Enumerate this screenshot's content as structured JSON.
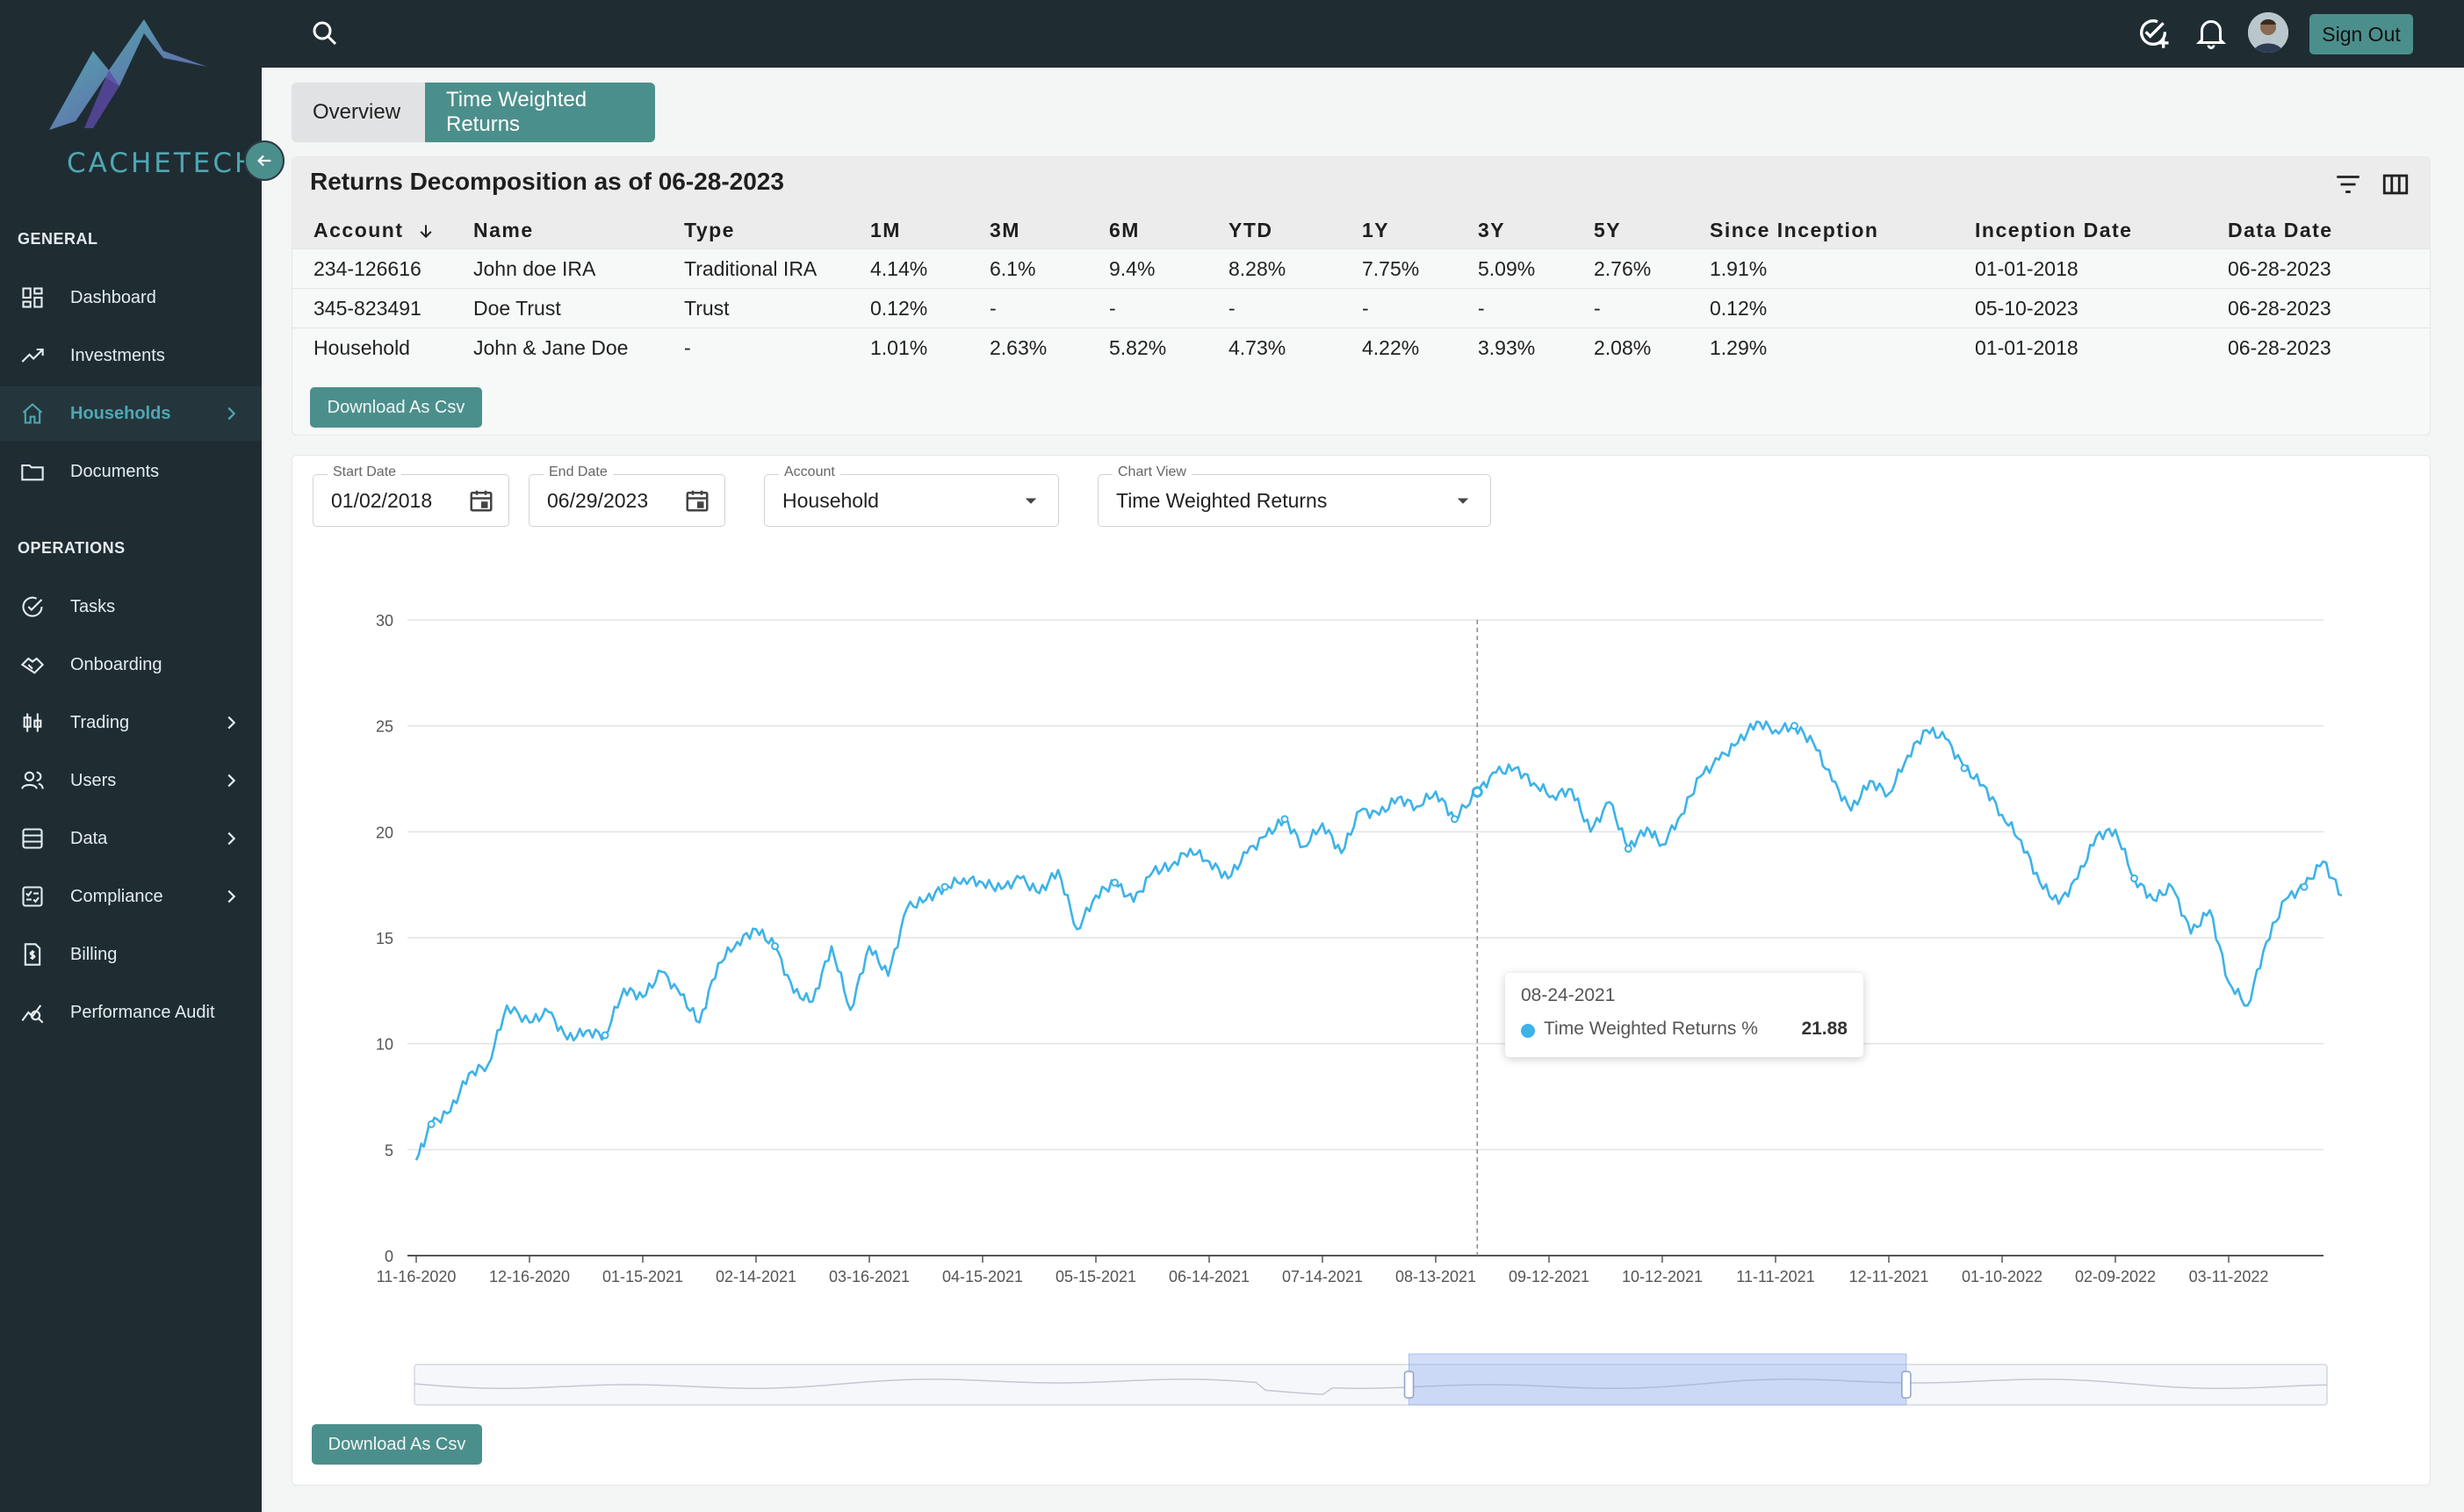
{
  "brand": {
    "name": "CACHETECH"
  },
  "sidebar": {
    "sections": [
      {
        "title": "GENERAL",
        "items": [
          {
            "label": "Dashboard",
            "icon": "dashboard-icon"
          },
          {
            "label": "Investments",
            "icon": "trending-up-icon"
          },
          {
            "label": "Households",
            "icon": "home-icon",
            "active": true,
            "has_children": true
          },
          {
            "label": "Documents",
            "icon": "folder-icon"
          }
        ]
      },
      {
        "title": "OPERATIONS",
        "items": [
          {
            "label": "Tasks",
            "icon": "check-circle-icon"
          },
          {
            "label": "Onboarding",
            "icon": "handshake-icon"
          },
          {
            "label": "Trading",
            "icon": "candlestick-icon",
            "has_children": true
          },
          {
            "label": "Users",
            "icon": "users-icon",
            "has_children": true
          },
          {
            "label": "Data",
            "icon": "database-icon",
            "has_children": true
          },
          {
            "label": "Compliance",
            "icon": "checklist-icon",
            "has_children": true
          },
          {
            "label": "Billing",
            "icon": "billing-icon"
          },
          {
            "label": "Performance Audit",
            "icon": "audit-chart-icon"
          }
        ]
      }
    ]
  },
  "topbar": {
    "sign_out_label": "Sign Out"
  },
  "tabs": [
    {
      "label": "Overview",
      "active": false
    },
    {
      "label": "Time Weighted Returns",
      "active": true
    }
  ],
  "returns": {
    "title": "Returns Decomposition as of 06-28-2023",
    "columns": [
      "Account",
      "Name",
      "Type",
      "1M",
      "3M",
      "6M",
      "YTD",
      "1Y",
      "3Y",
      "5Y",
      "Since Inception",
      "Inception Date",
      "Data Date"
    ],
    "rows": [
      [
        "234-126616",
        "John doe IRA",
        "Traditional IRA",
        "4.14%",
        "6.1%",
        "9.4%",
        "8.28%",
        "7.75%",
        "5.09%",
        "2.76%",
        "1.91%",
        "01-01-2018",
        "06-28-2023"
      ],
      [
        "345-823491",
        "Doe Trust",
        "Trust",
        "0.12%",
        "-",
        "-",
        "-",
        "-",
        "-",
        "-",
        "0.12%",
        "05-10-2023",
        "06-28-2023"
      ],
      [
        "Household",
        "John & Jane Doe",
        "-",
        "1.01%",
        "2.63%",
        "5.82%",
        "4.73%",
        "4.22%",
        "3.93%",
        "2.08%",
        "1.29%",
        "01-01-2018",
        "06-28-2023"
      ]
    ],
    "download_label": "Download As Csv"
  },
  "filters": {
    "start_date": {
      "label": "Start Date",
      "value": "01/02/2018"
    },
    "end_date": {
      "label": "End Date",
      "value": "06/29/2023"
    },
    "account": {
      "label": "Account",
      "value": "Household"
    },
    "chart_view": {
      "label": "Chart View",
      "value": "Time Weighted Returns"
    }
  },
  "chart_data": {
    "type": "line",
    "series": [
      {
        "name": "Time Weighted Returns %",
        "color": "#3db3e8"
      }
    ],
    "x_ticks": [
      "11-16-2020",
      "12-16-2020",
      "01-15-2021",
      "02-14-2021",
      "03-16-2021",
      "04-15-2021",
      "05-15-2021",
      "06-14-2021",
      "07-14-2021",
      "08-13-2021",
      "09-12-2021",
      "10-12-2021",
      "11-11-2021",
      "12-11-2021",
      "01-10-2022",
      "02-09-2022",
      "03-11-2022"
    ],
    "y_ticks": [
      0,
      5,
      10,
      15,
      20,
      25,
      30
    ],
    "ylim": [
      0,
      30
    ],
    "points": [
      [
        "11-16-2020",
        4.5
      ],
      [
        "11-20-2020",
        6.2
      ],
      [
        "11-25-2020",
        6.8
      ],
      [
        "11-30-2020",
        8.6
      ],
      [
        "12-05-2020",
        9.0
      ],
      [
        "12-10-2020",
        11.8
      ],
      [
        "12-16-2020",
        11.0
      ],
      [
        "12-21-2020",
        11.5
      ],
      [
        "12-26-2020",
        10.2
      ],
      [
        "12-31-2020",
        10.6
      ],
      [
        "01-05-2021",
        10.4
      ],
      [
        "01-10-2021",
        12.6
      ],
      [
        "01-15-2021",
        12.2
      ],
      [
        "01-20-2021",
        13.4
      ],
      [
        "01-25-2021",
        12.3
      ],
      [
        "01-30-2021",
        11.0
      ],
      [
        "02-04-2021",
        13.8
      ],
      [
        "02-09-2021",
        14.8
      ],
      [
        "02-14-2021",
        15.4
      ],
      [
        "02-19-2021",
        14.6
      ],
      [
        "02-24-2021",
        12.4
      ],
      [
        "03-01-2021",
        12.0
      ],
      [
        "03-06-2021",
        14.6
      ],
      [
        "03-11-2021",
        11.6
      ],
      [
        "03-16-2021",
        14.6
      ],
      [
        "03-21-2021",
        13.2
      ],
      [
        "03-26-2021",
        16.4
      ],
      [
        "03-31-2021",
        16.8
      ],
      [
        "04-05-2021",
        17.4
      ],
      [
        "04-10-2021",
        17.8
      ],
      [
        "04-15-2021",
        17.6
      ],
      [
        "04-20-2021",
        17.3
      ],
      [
        "04-25-2021",
        17.8
      ],
      [
        "04-30-2021",
        17.1
      ],
      [
        "05-05-2021",
        18.2
      ],
      [
        "05-10-2021",
        15.4
      ],
      [
        "05-15-2021",
        17.0
      ],
      [
        "05-20-2021",
        17.6
      ],
      [
        "05-25-2021",
        16.7
      ],
      [
        "05-30-2021",
        18.1
      ],
      [
        "06-04-2021",
        18.4
      ],
      [
        "06-09-2021",
        19.2
      ],
      [
        "06-14-2021",
        18.6
      ],
      [
        "06-19-2021",
        17.8
      ],
      [
        "06-24-2021",
        19.0
      ],
      [
        "06-29-2021",
        19.8
      ],
      [
        "07-04-2021",
        20.6
      ],
      [
        "07-09-2021",
        19.3
      ],
      [
        "07-14-2021",
        20.4
      ],
      [
        "07-19-2021",
        19.0
      ],
      [
        "07-24-2021",
        21.0
      ],
      [
        "07-29-2021",
        20.8
      ],
      [
        "08-03-2021",
        21.6
      ],
      [
        "08-08-2021",
        21.2
      ],
      [
        "08-13-2021",
        21.9
      ],
      [
        "08-18-2021",
        20.6
      ],
      [
        "08-24-2021",
        21.88
      ],
      [
        "08-29-2021",
        22.8
      ],
      [
        "09-03-2021",
        23.0
      ],
      [
        "09-08-2021",
        22.3
      ],
      [
        "09-13-2021",
        21.7
      ],
      [
        "09-18-2021",
        22.0
      ],
      [
        "09-23-2021",
        20.0
      ],
      [
        "09-28-2021",
        21.4
      ],
      [
        "10-03-2021",
        19.2
      ],
      [
        "10-08-2021",
        20.2
      ],
      [
        "10-12-2021",
        19.4
      ],
      [
        "10-17-2021",
        20.8
      ],
      [
        "10-22-2021",
        22.6
      ],
      [
        "10-27-2021",
        23.4
      ],
      [
        "11-01-2021",
        24.2
      ],
      [
        "11-06-2021",
        25.2
      ],
      [
        "11-11-2021",
        24.8
      ],
      [
        "11-16-2021",
        25.0
      ],
      [
        "11-21-2021",
        24.2
      ],
      [
        "11-26-2021",
        22.4
      ],
      [
        "12-01-2021",
        21.0
      ],
      [
        "12-06-2021",
        22.4
      ],
      [
        "12-11-2021",
        21.8
      ],
      [
        "12-16-2021",
        23.6
      ],
      [
        "12-21-2021",
        24.8
      ],
      [
        "12-26-2021",
        24.4
      ],
      [
        "12-31-2021",
        23.0
      ],
      [
        "01-05-2022",
        22.2
      ],
      [
        "01-10-2022",
        20.8
      ],
      [
        "01-15-2022",
        19.6
      ],
      [
        "01-20-2022",
        17.6
      ],
      [
        "01-25-2022",
        16.6
      ],
      [
        "01-30-2022",
        17.8
      ],
      [
        "02-04-2022",
        19.8
      ],
      [
        "02-09-2022",
        20.1
      ],
      [
        "02-14-2022",
        17.8
      ],
      [
        "02-19-2022",
        16.8
      ],
      [
        "02-24-2022",
        17.4
      ],
      [
        "03-01-2022",
        15.2
      ],
      [
        "03-06-2022",
        16.3
      ],
      [
        "03-11-2022",
        12.9
      ],
      [
        "03-16-2022",
        11.8
      ],
      [
        "03-21-2022",
        14.8
      ],
      [
        "03-26-2022",
        16.8
      ],
      [
        "03-31-2022",
        17.4
      ],
      [
        "04-05-2022",
        18.6
      ],
      [
        "04-10-2022",
        17.0
      ]
    ],
    "tooltip": {
      "date": "08-24-2021",
      "series": "Time Weighted Returns %",
      "value": "21.88"
    },
    "grid": true,
    "zoom_window": [
      0.52,
      0.78
    ]
  },
  "chart_download_label": "Download As Csv"
}
